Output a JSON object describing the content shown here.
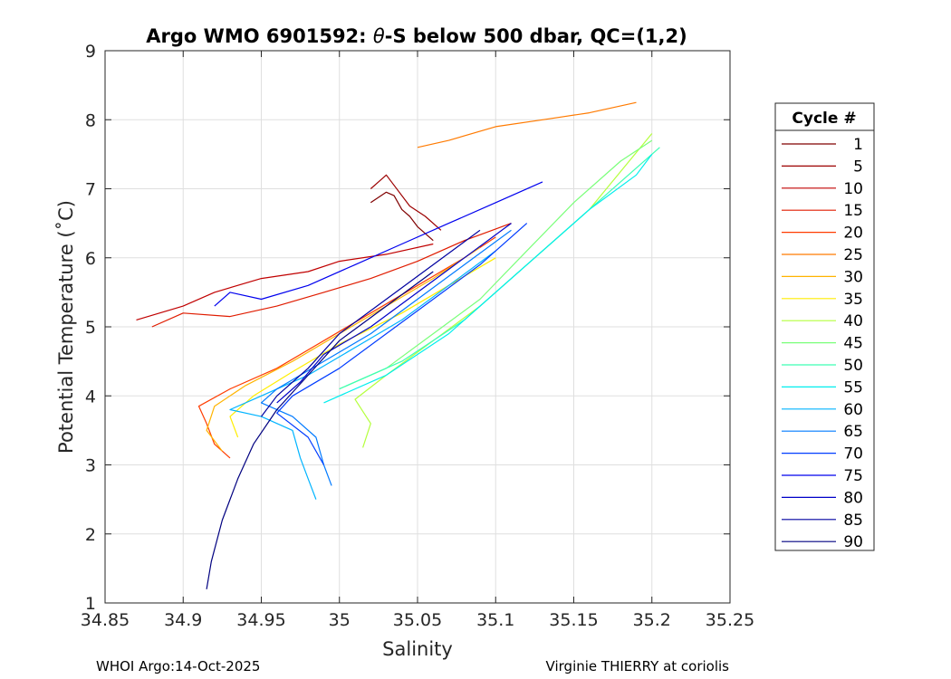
{
  "chart_data": {
    "type": "line",
    "title_prefix": "Argo WMO 6901592: ",
    "title_theta": "θ",
    "title_suffix": "-S below 500 dbar,  QC=(1,2)",
    "xlabel": "Salinity",
    "ylabel": "Potential Temperature (˚C)",
    "xlim": [
      34.85,
      35.25
    ],
    "ylim": [
      1,
      9
    ],
    "xticks": [
      34.85,
      34.9,
      34.95,
      35,
      35.05,
      35.1,
      35.15,
      35.2,
      35.25
    ],
    "xtick_labels": [
      "34.85",
      "34.9",
      "34.95",
      "35",
      "35.05",
      "35.1",
      "35.15",
      "35.2",
      "35.25"
    ],
    "yticks": [
      1,
      2,
      3,
      4,
      5,
      6,
      7,
      8,
      9
    ],
    "ytick_labels": [
      "1",
      "2",
      "3",
      "4",
      "5",
      "6",
      "7",
      "8",
      "9"
    ],
    "grid": true,
    "legend": {
      "title": "Cycle #",
      "position": "right",
      "entries": [
        {
          "label": "1",
          "color": "#800000"
        },
        {
          "label": "5",
          "color": "#9c0000"
        },
        {
          "label": "10",
          "color": "#c00000"
        },
        {
          "label": "15",
          "color": "#e01c00"
        },
        {
          "label": "20",
          "color": "#ff3c00"
        },
        {
          "label": "25",
          "color": "#ff7a00"
        },
        {
          "label": "30",
          "color": "#ffb400"
        },
        {
          "label": "35",
          "color": "#ffee00"
        },
        {
          "label": "40",
          "color": "#b4ff3c"
        },
        {
          "label": "45",
          "color": "#7aff7a"
        },
        {
          "label": "50",
          "color": "#3cffb4"
        },
        {
          "label": "55",
          "color": "#00eeee"
        },
        {
          "label": "60",
          "color": "#00b4ff"
        },
        {
          "label": "65",
          "color": "#007aff"
        },
        {
          "label": "70",
          "color": "#003cff"
        },
        {
          "label": "75",
          "color": "#0000ee"
        },
        {
          "label": "80",
          "color": "#0000c8"
        },
        {
          "label": "85",
          "color": "#0000a0"
        },
        {
          "label": "90",
          "color": "#000080"
        }
      ]
    },
    "series": [
      {
        "name": "1",
        "color": "#800000",
        "points": [
          [
            35.02,
            6.8
          ],
          [
            35.03,
            6.95
          ],
          [
            35.035,
            6.9
          ],
          [
            35.04,
            6.7
          ],
          [
            35.045,
            6.6
          ],
          [
            35.05,
            6.45
          ],
          [
            35.06,
            6.25
          ]
        ]
      },
      {
        "name": "5",
        "color": "#9c0000",
        "points": [
          [
            35.02,
            7.0
          ],
          [
            35.025,
            7.1
          ],
          [
            35.03,
            7.2
          ],
          [
            35.035,
            7.05
          ],
          [
            35.045,
            6.75
          ],
          [
            35.055,
            6.6
          ],
          [
            35.065,
            6.4
          ]
        ]
      },
      {
        "name": "10",
        "color": "#c00000",
        "points": [
          [
            34.87,
            5.1
          ],
          [
            34.9,
            5.3
          ],
          [
            34.92,
            5.5
          ],
          [
            34.95,
            5.7
          ],
          [
            34.98,
            5.8
          ],
          [
            35.0,
            5.95
          ],
          [
            35.03,
            6.05
          ],
          [
            35.06,
            6.2
          ]
        ]
      },
      {
        "name": "15",
        "color": "#e01c00",
        "points": [
          [
            34.88,
            5.0
          ],
          [
            34.9,
            5.2
          ],
          [
            34.93,
            5.15
          ],
          [
            34.96,
            5.3
          ],
          [
            34.99,
            5.5
          ],
          [
            35.02,
            5.7
          ],
          [
            35.05,
            5.95
          ],
          [
            35.08,
            6.25
          ],
          [
            35.11,
            6.5
          ]
        ]
      },
      {
        "name": "20",
        "color": "#ff3c00",
        "points": [
          [
            34.93,
            3.1
          ],
          [
            34.92,
            3.3
          ],
          [
            34.915,
            3.6
          ],
          [
            34.91,
            3.85
          ],
          [
            34.93,
            4.1
          ],
          [
            34.96,
            4.4
          ],
          [
            34.99,
            4.8
          ],
          [
            35.02,
            5.2
          ],
          [
            35.05,
            5.6
          ],
          [
            35.08,
            6.0
          ],
          [
            35.1,
            6.3
          ]
        ]
      },
      {
        "name": "25",
        "color": "#ff7a00",
        "points": [
          [
            35.05,
            7.6
          ],
          [
            35.07,
            7.7
          ],
          [
            35.1,
            7.9
          ],
          [
            35.13,
            8.0
          ],
          [
            35.16,
            8.1
          ],
          [
            35.19,
            8.25
          ]
        ]
      },
      {
        "name": "30",
        "color": "#ffb400",
        "points": [
          [
            34.925,
            3.2
          ],
          [
            34.915,
            3.5
          ],
          [
            34.92,
            3.85
          ],
          [
            34.94,
            4.15
          ],
          [
            34.97,
            4.5
          ],
          [
            35.0,
            4.9
          ],
          [
            35.03,
            5.3
          ],
          [
            35.06,
            5.7
          ],
          [
            35.09,
            6.15
          ]
        ]
      },
      {
        "name": "35",
        "color": "#ffee00",
        "points": [
          [
            34.935,
            3.4
          ],
          [
            34.93,
            3.7
          ],
          [
            34.945,
            4.0
          ],
          [
            34.97,
            4.35
          ],
          [
            35.0,
            4.75
          ],
          [
            35.04,
            5.2
          ],
          [
            35.07,
            5.6
          ],
          [
            35.1,
            6.0
          ]
        ]
      },
      {
        "name": "40",
        "color": "#b4ff3c",
        "points": [
          [
            35.015,
            3.25
          ],
          [
            35.02,
            3.6
          ],
          [
            35.01,
            3.95
          ],
          [
            35.03,
            4.3
          ],
          [
            35.06,
            4.8
          ],
          [
            35.09,
            5.3
          ],
          [
            35.12,
            5.9
          ],
          [
            35.16,
            6.7
          ],
          [
            35.2,
            7.8
          ]
        ]
      },
      {
        "name": "45",
        "color": "#7aff7a",
        "points": [
          [
            35.0,
            4.1
          ],
          [
            35.03,
            4.4
          ],
          [
            35.06,
            4.9
          ],
          [
            35.09,
            5.4
          ],
          [
            35.12,
            6.1
          ],
          [
            35.15,
            6.8
          ],
          [
            35.18,
            7.4
          ],
          [
            35.2,
            7.7
          ]
        ]
      },
      {
        "name": "50",
        "color": "#3cffb4",
        "points": [
          [
            35.0,
            4.1
          ],
          [
            35.04,
            4.5
          ],
          [
            35.08,
            5.1
          ],
          [
            35.11,
            5.7
          ],
          [
            35.14,
            6.3
          ],
          [
            35.17,
            6.9
          ],
          [
            35.205,
            7.6
          ]
        ]
      },
      {
        "name": "55",
        "color": "#00eeee",
        "points": [
          [
            34.99,
            3.9
          ],
          [
            35.03,
            4.3
          ],
          [
            35.07,
            4.9
          ],
          [
            35.1,
            5.5
          ],
          [
            35.13,
            6.1
          ],
          [
            35.16,
            6.7
          ],
          [
            35.19,
            7.2
          ],
          [
            35.2,
            7.5
          ]
        ]
      },
      {
        "name": "60",
        "color": "#00b4ff",
        "points": [
          [
            34.985,
            2.5
          ],
          [
            34.98,
            2.8
          ],
          [
            34.975,
            3.1
          ],
          [
            34.97,
            3.5
          ],
          [
            34.95,
            3.7
          ],
          [
            34.93,
            3.8
          ],
          [
            34.95,
            4.0
          ],
          [
            34.98,
            4.3
          ],
          [
            35.01,
            4.7
          ],
          [
            35.04,
            5.1
          ],
          [
            35.07,
            5.6
          ],
          [
            35.1,
            6.1
          ]
        ]
      },
      {
        "name": "65",
        "color": "#007aff",
        "points": [
          [
            34.995,
            2.7
          ],
          [
            34.99,
            3.0
          ],
          [
            34.985,
            3.4
          ],
          [
            34.97,
            3.7
          ],
          [
            34.95,
            3.9
          ],
          [
            34.96,
            4.1
          ],
          [
            34.99,
            4.5
          ],
          [
            35.02,
            4.9
          ],
          [
            35.05,
            5.4
          ],
          [
            35.08,
            5.9
          ],
          [
            35.11,
            6.4
          ]
        ]
      },
      {
        "name": "70",
        "color": "#003cff",
        "points": [
          [
            34.99,
            3.0
          ],
          [
            34.98,
            3.4
          ],
          [
            34.96,
            3.75
          ],
          [
            34.97,
            4.0
          ],
          [
            35.0,
            4.4
          ],
          [
            35.03,
            4.9
          ],
          [
            35.06,
            5.4
          ],
          [
            35.09,
            5.9
          ],
          [
            35.12,
            6.5
          ]
        ]
      },
      {
        "name": "75",
        "color": "#0000ee",
        "points": [
          [
            34.92,
            5.3
          ],
          [
            34.93,
            5.5
          ],
          [
            34.95,
            5.4
          ],
          [
            34.98,
            5.6
          ],
          [
            35.01,
            5.9
          ],
          [
            35.04,
            6.2
          ],
          [
            35.07,
            6.5
          ],
          [
            35.1,
            6.8
          ],
          [
            35.13,
            7.1
          ]
        ]
      },
      {
        "name": "80",
        "color": "#0000c8",
        "points": [
          [
            34.96,
            3.9
          ],
          [
            34.975,
            4.2
          ],
          [
            34.99,
            4.6
          ],
          [
            35.02,
            5.0
          ],
          [
            35.05,
            5.5
          ],
          [
            35.08,
            6.0
          ],
          [
            35.11,
            6.5
          ]
        ]
      },
      {
        "name": "85",
        "color": "#0000a0",
        "points": [
          [
            34.95,
            3.7
          ],
          [
            34.96,
            4.0
          ],
          [
            34.98,
            4.4
          ],
          [
            35.0,
            4.9
          ],
          [
            35.03,
            5.4
          ],
          [
            35.06,
            5.9
          ],
          [
            35.09,
            6.4
          ]
        ]
      },
      {
        "name": "90",
        "color": "#000080",
        "points": [
          [
            34.915,
            1.2
          ],
          [
            34.918,
            1.6
          ],
          [
            34.925,
            2.2
          ],
          [
            34.935,
            2.8
          ],
          [
            34.945,
            3.3
          ],
          [
            34.96,
            3.8
          ],
          [
            34.98,
            4.3
          ],
          [
            35.0,
            4.8
          ],
          [
            35.03,
            5.3
          ],
          [
            35.06,
            5.8
          ]
        ]
      }
    ]
  },
  "footer": {
    "left": "WHOI Argo:14-Oct-2025",
    "right": "Virginie THIERRY at coriolis"
  }
}
